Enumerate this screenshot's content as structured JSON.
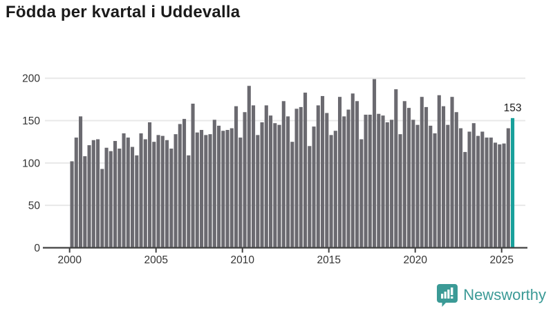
{
  "title": "Födda per kvartal i Uddevalla",
  "brand": {
    "name": "Newsworthy",
    "color": "#3b9a96",
    "icon": "bar-chart-speech-bubble-icon"
  },
  "annotation": {
    "text": "153"
  },
  "colors": {
    "bar": "#6b6a70",
    "highlight": "#18a09b",
    "grid": "#e8e8e8",
    "axis": "#404040",
    "tick_text": "#333333",
    "title_text": "#1a1a1a"
  },
  "chart_data": {
    "type": "bar",
    "title": "Födda per kvartal i Uddevalla",
    "xlabel": "",
    "ylabel": "",
    "ylim": [
      0,
      210
    ],
    "y_ticks": [
      0,
      50,
      100,
      150,
      200
    ],
    "x_tick_labels": [
      "2000",
      "2005",
      "2010",
      "2015",
      "2020",
      "2025"
    ],
    "grid": true,
    "legend": "none",
    "highlight_index": 102,
    "annotated_value": 153,
    "categories": [
      "2000Q1",
      "2000Q2",
      "2000Q3",
      "2000Q4",
      "2001Q1",
      "2001Q2",
      "2001Q3",
      "2001Q4",
      "2002Q1",
      "2002Q2",
      "2002Q3",
      "2002Q4",
      "2003Q1",
      "2003Q2",
      "2003Q3",
      "2003Q4",
      "2004Q1",
      "2004Q2",
      "2004Q3",
      "2004Q4",
      "2005Q1",
      "2005Q2",
      "2005Q3",
      "2005Q4",
      "2006Q1",
      "2006Q2",
      "2006Q3",
      "2006Q4",
      "2007Q1",
      "2007Q2",
      "2007Q3",
      "2007Q4",
      "2008Q1",
      "2008Q2",
      "2008Q3",
      "2008Q4",
      "2009Q1",
      "2009Q2",
      "2009Q3",
      "2009Q4",
      "2010Q1",
      "2010Q2",
      "2010Q3",
      "2010Q4",
      "2011Q1",
      "2011Q2",
      "2011Q3",
      "2011Q4",
      "2012Q1",
      "2012Q2",
      "2012Q3",
      "2012Q4",
      "2013Q1",
      "2013Q2",
      "2013Q3",
      "2013Q4",
      "2014Q1",
      "2014Q2",
      "2014Q3",
      "2014Q4",
      "2015Q1",
      "2015Q2",
      "2015Q3",
      "2015Q4",
      "2016Q1",
      "2016Q2",
      "2016Q3",
      "2016Q4",
      "2017Q1",
      "2017Q2",
      "2017Q3",
      "2017Q4",
      "2018Q1",
      "2018Q2",
      "2018Q3",
      "2018Q4",
      "2019Q1",
      "2019Q2",
      "2019Q3",
      "2019Q4",
      "2020Q1",
      "2020Q2",
      "2020Q3",
      "2020Q4",
      "2021Q1",
      "2021Q2",
      "2021Q3",
      "2021Q4",
      "2022Q1",
      "2022Q2",
      "2022Q3",
      "2022Q4",
      "2023Q1",
      "2023Q2",
      "2023Q3",
      "2023Q4",
      "2024Q1",
      "2024Q2",
      "2024Q3",
      "2024Q4",
      "2025Q1",
      "2025Q2",
      "2025Q3"
    ],
    "series": [
      {
        "name": "Födda",
        "values": [
          102,
          130,
          155,
          108,
          121,
          127,
          128,
          93,
          118,
          114,
          126,
          117,
          135,
          130,
          119,
          109,
          135,
          128,
          148,
          125,
          133,
          132,
          127,
          117,
          134,
          146,
          152,
          109,
          170,
          136,
          139,
          133,
          134,
          151,
          144,
          138,
          139,
          141,
          167,
          130,
          160,
          191,
          168,
          133,
          148,
          168,
          156,
          147,
          145,
          173,
          155,
          125,
          164,
          166,
          183,
          120,
          143,
          168,
          179,
          159,
          133,
          138,
          178,
          155,
          163,
          182,
          173,
          128,
          157,
          157,
          199,
          158,
          156,
          148,
          151,
          187,
          134,
          173,
          165,
          151,
          145,
          178,
          166,
          144,
          135,
          180,
          167,
          145,
          178,
          160,
          141,
          113,
          137,
          147,
          132,
          137,
          130,
          130,
          124,
          122,
          123,
          141,
          153
        ]
      }
    ]
  }
}
